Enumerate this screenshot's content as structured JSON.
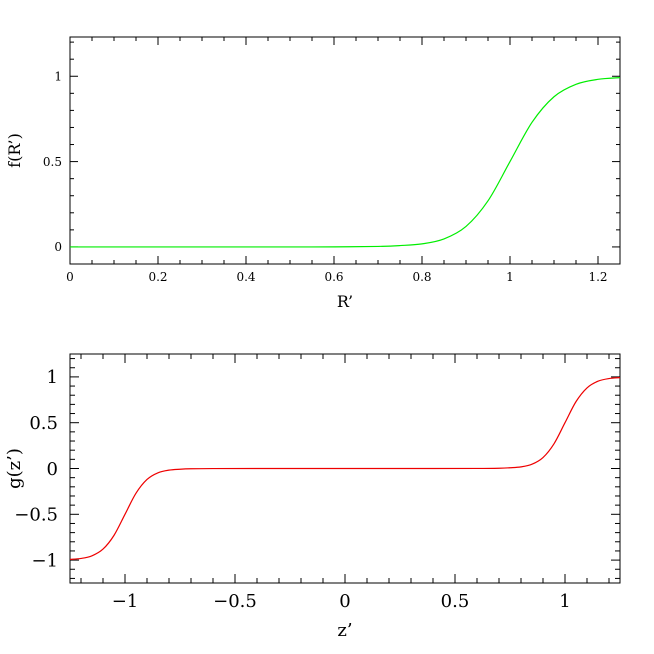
{
  "chart_data": [
    {
      "type": "line",
      "xlabel": "R’",
      "ylabel": "f(R’)",
      "xlim": [
        0,
        1.25
      ],
      "ylim": [
        -0.1,
        1.23
      ],
      "x_ticks": [
        0,
        0.2,
        0.4,
        0.6,
        0.8,
        1,
        1.2
      ],
      "x_tick_labels": [
        "0",
        "0.2",
        "0.4",
        "0.6",
        "0.8",
        "1",
        "1.2"
      ],
      "y_ticks": [
        0,
        0.5,
        1
      ],
      "y_tick_labels": [
        "0",
        "0.5",
        "1"
      ],
      "grid": false,
      "series": [
        {
          "color": "#00ee00",
          "x": [
            0,
            0.1,
            0.2,
            0.3,
            0.4,
            0.5,
            0.6,
            0.7,
            0.75,
            0.8,
            0.85,
            0.9,
            0.95,
            1.0,
            1.05,
            1.1,
            1.15,
            1.2,
            1.25
          ],
          "y": [
            0,
            0,
            0,
            0,
            0,
            0,
            0.0005,
            0.003,
            0.008,
            0.018,
            0.047,
            0.12,
            0.27,
            0.5,
            0.73,
            0.88,
            0.953,
            0.982,
            0.992
          ]
        }
      ]
    },
    {
      "type": "line",
      "xlabel": "z’",
      "ylabel": "g(z’)",
      "xlim": [
        -1.25,
        1.25
      ],
      "ylim": [
        -1.25,
        1.25
      ],
      "x_ticks": [
        -1,
        -0.5,
        0,
        0.5,
        1
      ],
      "x_tick_labels": [
        "−1",
        "−0.5",
        "0",
        "0.5",
        "1"
      ],
      "y_ticks": [
        -1,
        -0.5,
        0,
        0.5,
        1
      ],
      "y_tick_labels": [
        "−1",
        "−0.5",
        "0",
        "0.5",
        "1"
      ],
      "grid": false,
      "series": [
        {
          "color": "#ee0000",
          "x": [
            -1.25,
            -1.2,
            -1.15,
            -1.1,
            -1.05,
            -1.0,
            -0.95,
            -0.9,
            -0.85,
            -0.8,
            -0.75,
            -0.7,
            -0.6,
            -0.4,
            0,
            0.4,
            0.6,
            0.7,
            0.75,
            0.8,
            0.85,
            0.9,
            0.95,
            1.0,
            1.05,
            1.1,
            1.15,
            1.2,
            1.25
          ],
          "y": [
            -0.992,
            -0.982,
            -0.953,
            -0.88,
            -0.73,
            -0.5,
            -0.27,
            -0.12,
            -0.047,
            -0.018,
            -0.008,
            -0.003,
            -0.0005,
            0,
            0,
            0,
            0.0005,
            0.003,
            0.008,
            0.018,
            0.047,
            0.12,
            0.27,
            0.5,
            0.73,
            0.88,
            0.953,
            0.982,
            0.992
          ]
        }
      ]
    }
  ]
}
